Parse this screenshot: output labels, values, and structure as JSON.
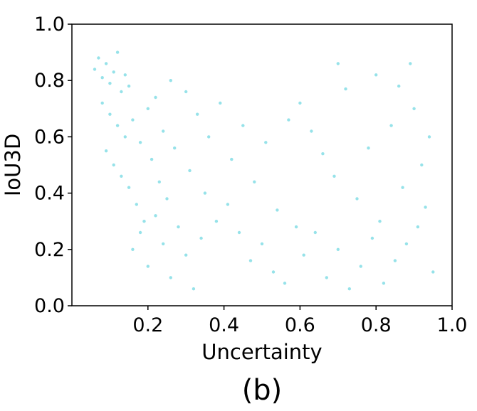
{
  "chart_data": {
    "type": "scatter",
    "title": "",
    "xlabel": "Uncertainty",
    "ylabel": "IoU3D",
    "caption": "(b)",
    "xlim": [
      0.0,
      1.0
    ],
    "ylim": [
      0.0,
      1.0
    ],
    "x_ticks": [
      "0.2",
      "0.4",
      "0.6",
      "0.8",
      "1.0"
    ],
    "y_ticks": [
      "0.0",
      "0.2",
      "0.4",
      "0.6",
      "0.8",
      "1.0"
    ],
    "grid": false,
    "legend": "none",
    "point_color": "#17becf",
    "point_opacity": 0.45,
    "series": [
      {
        "points": [
          [
            0.06,
            0.84
          ],
          [
            0.07,
            0.88
          ],
          [
            0.08,
            0.81
          ],
          [
            0.09,
            0.86
          ],
          [
            0.1,
            0.79
          ],
          [
            0.11,
            0.83
          ],
          [
            0.12,
            0.9
          ],
          [
            0.13,
            0.76
          ],
          [
            0.14,
            0.82
          ],
          [
            0.15,
            0.78
          ],
          [
            0.08,
            0.72
          ],
          [
            0.1,
            0.68
          ],
          [
            0.12,
            0.64
          ],
          [
            0.14,
            0.6
          ],
          [
            0.16,
            0.66
          ],
          [
            0.18,
            0.58
          ],
          [
            0.2,
            0.7
          ],
          [
            0.22,
            0.74
          ],
          [
            0.24,
            0.62
          ],
          [
            0.26,
            0.8
          ],
          [
            0.09,
            0.55
          ],
          [
            0.11,
            0.5
          ],
          [
            0.13,
            0.46
          ],
          [
            0.15,
            0.42
          ],
          [
            0.17,
            0.36
          ],
          [
            0.19,
            0.3
          ],
          [
            0.21,
            0.52
          ],
          [
            0.23,
            0.44
          ],
          [
            0.25,
            0.38
          ],
          [
            0.27,
            0.56
          ],
          [
            0.16,
            0.2
          ],
          [
            0.18,
            0.26
          ],
          [
            0.2,
            0.14
          ],
          [
            0.22,
            0.32
          ],
          [
            0.24,
            0.22
          ],
          [
            0.26,
            0.1
          ],
          [
            0.28,
            0.28
          ],
          [
            0.3,
            0.18
          ],
          [
            0.32,
            0.06
          ],
          [
            0.34,
            0.24
          ],
          [
            0.3,
            0.76
          ],
          [
            0.33,
            0.68
          ],
          [
            0.36,
            0.6
          ],
          [
            0.39,
            0.72
          ],
          [
            0.42,
            0.52
          ],
          [
            0.45,
            0.64
          ],
          [
            0.48,
            0.44
          ],
          [
            0.51,
            0.58
          ],
          [
            0.54,
            0.34
          ],
          [
            0.57,
            0.66
          ],
          [
            0.31,
            0.48
          ],
          [
            0.35,
            0.4
          ],
          [
            0.38,
            0.3
          ],
          [
            0.41,
            0.36
          ],
          [
            0.44,
            0.26
          ],
          [
            0.47,
            0.16
          ],
          [
            0.5,
            0.22
          ],
          [
            0.53,
            0.12
          ],
          [
            0.56,
            0.08
          ],
          [
            0.59,
            0.28
          ],
          [
            0.6,
            0.72
          ],
          [
            0.63,
            0.62
          ],
          [
            0.66,
            0.54
          ],
          [
            0.69,
            0.46
          ],
          [
            0.72,
            0.77
          ],
          [
            0.75,
            0.38
          ],
          [
            0.78,
            0.56
          ],
          [
            0.81,
            0.3
          ],
          [
            0.84,
            0.64
          ],
          [
            0.87,
            0.42
          ],
          [
            0.61,
            0.18
          ],
          [
            0.64,
            0.26
          ],
          [
            0.67,
            0.1
          ],
          [
            0.7,
            0.2
          ],
          [
            0.73,
            0.06
          ],
          [
            0.76,
            0.14
          ],
          [
            0.79,
            0.24
          ],
          [
            0.82,
            0.08
          ],
          [
            0.85,
            0.16
          ],
          [
            0.88,
            0.22
          ],
          [
            0.9,
            0.7
          ],
          [
            0.92,
            0.5
          ],
          [
            0.93,
            0.35
          ],
          [
            0.94,
            0.6
          ],
          [
            0.91,
            0.28
          ],
          [
            0.89,
            0.86
          ],
          [
            0.95,
            0.12
          ],
          [
            0.86,
            0.78
          ],
          [
            0.8,
            0.82
          ],
          [
            0.7,
            0.86
          ]
        ]
      }
    ]
  }
}
